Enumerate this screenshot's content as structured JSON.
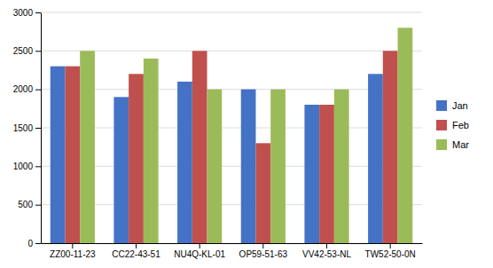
{
  "chart_data": {
    "type": "bar",
    "categories": [
      "ZZ00-11-23",
      "CC22-43-51",
      "NU4Q-KL-01",
      "OP59-51-63",
      "VV42-53-NL",
      "TW52-50-0N"
    ],
    "series": [
      {
        "name": "Jan",
        "color": "#4472C4",
        "values": [
          2300,
          1900,
          2100,
          2000,
          1800,
          2200
        ]
      },
      {
        "name": "Feb",
        "color": "#C0504D",
        "values": [
          2300,
          2200,
          2500,
          1300,
          1800,
          2500
        ]
      },
      {
        "name": "Mar",
        "color": "#9BBB59",
        "values": [
          2500,
          2400,
          2000,
          2000,
          2000,
          2800
        ]
      }
    ],
    "ylim": [
      0,
      3000
    ],
    "yticks": [
      0,
      500,
      1000,
      1500,
      2000,
      2500,
      3000
    ],
    "grid": true,
    "legend": "right"
  }
}
